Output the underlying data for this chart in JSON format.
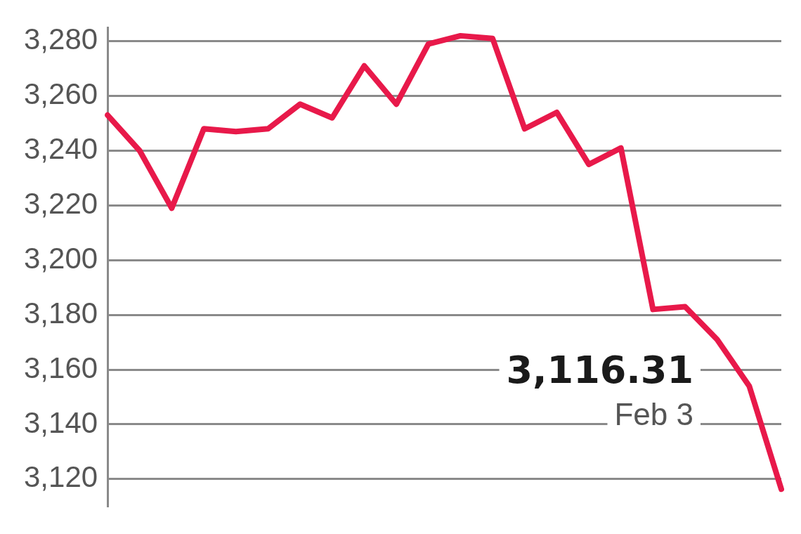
{
  "chart_data": {
    "type": "line",
    "categories": [
      null,
      null,
      null,
      null,
      null,
      null,
      null,
      null,
      null,
      null,
      null,
      null,
      null,
      null,
      null,
      null,
      null,
      null,
      null,
      null,
      null,
      null
    ],
    "series": [
      {
        "color": "#e8194a",
        "values": [
          3253,
          3240,
          3219,
          3248,
          3247,
          3248,
          3257,
          3252,
          3271,
          3257,
          3279,
          3282,
          3281,
          3248,
          3254,
          3235,
          3241,
          3182,
          3183,
          3171,
          3154,
          3116.31
        ]
      }
    ],
    "ylim": [
      3110,
      3285
    ],
    "yticks": [
      {
        "value": 3120,
        "label": "3,120"
      },
      {
        "value": 3140,
        "label": "3,140"
      },
      {
        "value": 3160,
        "label": "3,160"
      },
      {
        "value": 3180,
        "label": "3,180"
      },
      {
        "value": 3200,
        "label": "3,200"
      },
      {
        "value": 3220,
        "label": "3,220"
      },
      {
        "value": 3240,
        "label": "3,240"
      },
      {
        "value": 3260,
        "label": "3,260"
      },
      {
        "value": 3280,
        "label": "3,280"
      }
    ],
    "grid": "y",
    "annotations": [
      "3,116.31",
      "Feb 3"
    ]
  }
}
